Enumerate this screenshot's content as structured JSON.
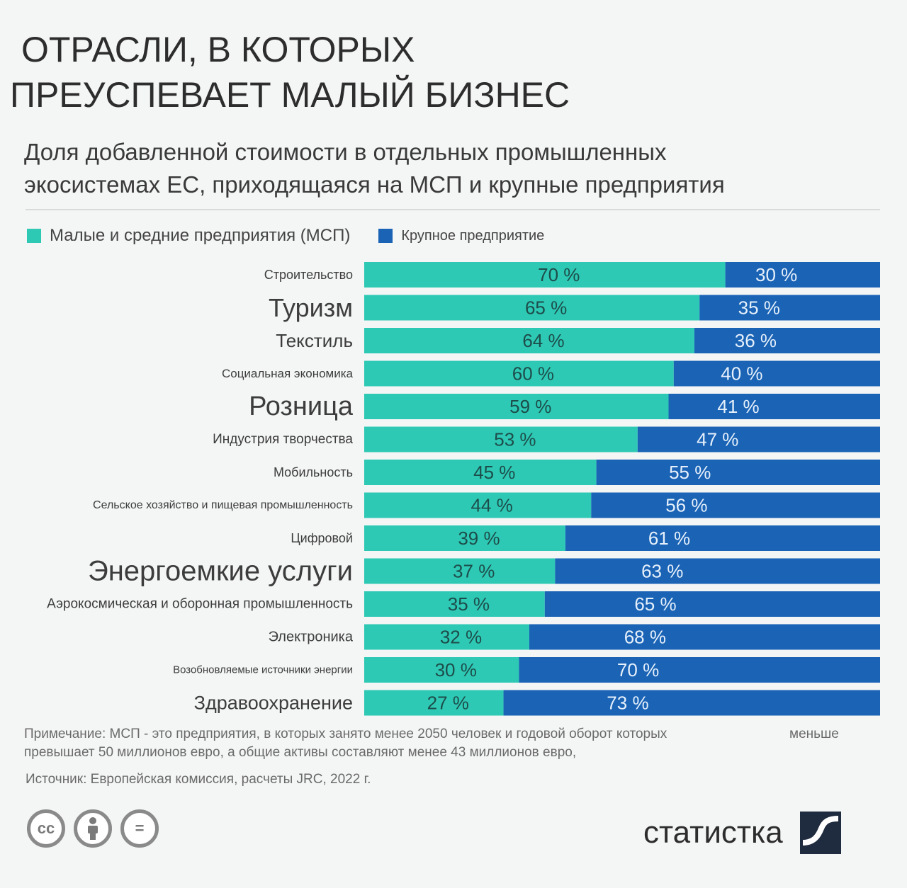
{
  "title": {
    "line1": "ОТРАСЛИ, В КОТОРЫХ",
    "line2": "ПРЕУСПЕВАЕТ МАЛЫЙ БИЗНЕС"
  },
  "subtitle": {
    "line1": "Доля добавленной стоимости в отдельных промышленных",
    "line2": "экосистемах ЕС, приходящаяся на МСП и крупные предприятия"
  },
  "legend": {
    "msp_label": "Малые и средние предприятия (МСП)",
    "large_label": "Крупное предприятие"
  },
  "colors": {
    "msp": "#2ec9b5",
    "large": "#1a63b5"
  },
  "chart_data": {
    "type": "bar",
    "orientation": "horizontal",
    "stacked": true,
    "unit": "%",
    "xlim": [
      0,
      100
    ],
    "categories": [
      "Строительство",
      "Туризм",
      "Текстиль",
      "Социальная экономика",
      "Розница",
      "Индустрия творчества",
      "Мобильность",
      "Сельское хозяйство и пищевая промышленность",
      "Цифровой",
      "Энергоемкие услуги",
      "Аэрокосмическая и оборонная промышленность",
      "Электроника",
      "Возобновляемые источники энергии",
      "Здравоохранение"
    ],
    "series": [
      {
        "name": "Малые и средние предприятия (МСП)",
        "values": [
          70,
          65,
          64,
          60,
          59,
          53,
          45,
          44,
          39,
          37,
          35,
          32,
          30,
          27
        ]
      },
      {
        "name": "Крупное предприятие",
        "values": [
          30,
          35,
          36,
          40,
          41,
          47,
          55,
          56,
          61,
          63,
          65,
          68,
          70,
          73
        ]
      }
    ]
  },
  "note": {
    "line1": "Примечание: МСП - это предприятия, в которых занято менее 2050 человек и годовой оборот которых",
    "line1_tail": "меньше",
    "line2": "превышает 50 миллионов евро, а общие активы составляют менее 43 миллионов евро,"
  },
  "source": "Источник: Европейская комиссия, расчеты JRC, 2022 г.",
  "license": {
    "cc": "cc",
    "equals": "="
  },
  "brand": {
    "name": "статистка"
  }
}
